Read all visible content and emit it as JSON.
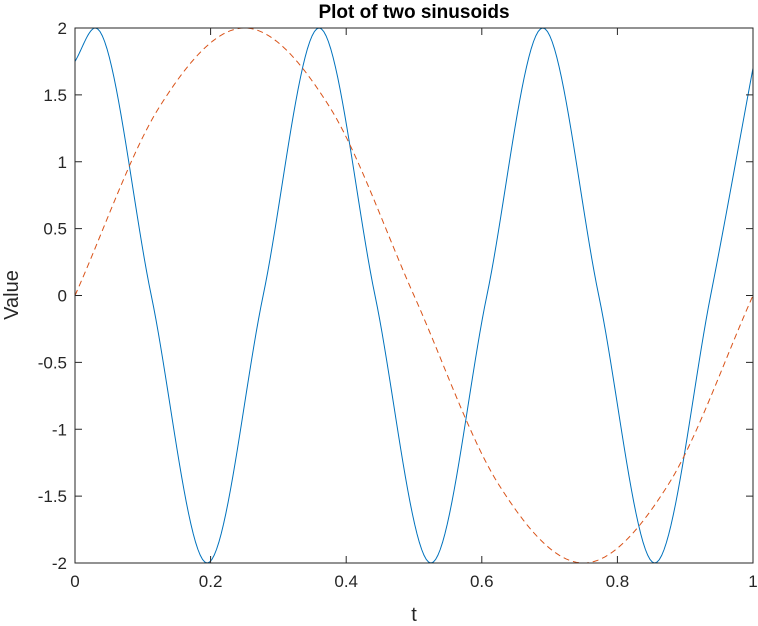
{
  "chart_data": {
    "type": "line",
    "title": "Plot of two sinusoids",
    "xlabel": "t",
    "ylabel": "Value",
    "xlim": [
      0,
      1
    ],
    "ylim": [
      -2,
      2
    ],
    "xticks": [
      0,
      0.2,
      0.4,
      0.6,
      0.8,
      1
    ],
    "xtick_labels": [
      "0",
      "0.2",
      "0.4",
      "0.6",
      "0.8",
      "1"
    ],
    "yticks": [
      -2,
      -1.5,
      -1,
      -0.5,
      0,
      0.5,
      1,
      1.5,
      2
    ],
    "ytick_labels": [
      "-2",
      "-1.5",
      "-1",
      "-0.5",
      "0",
      "0.5",
      "1",
      "1.5",
      "2"
    ],
    "grid": false,
    "legend": "none",
    "series": [
      {
        "color": "#0072BD",
        "line_style": "solid",
        "x": [
          0,
          0.03,
          0.1125,
          0.195,
          0.2775,
          0.36,
          0.4425,
          0.525,
          0.6075,
          0.69,
          0.7725,
          0.855,
          0.9375,
          1
        ],
        "y": [
          1.75,
          2,
          0,
          -2,
          0,
          2,
          0,
          -2,
          0,
          2,
          0,
          -2,
          0,
          1.7
        ]
      },
      {
        "color": "#D95319",
        "line_style": "dashed",
        "x": [
          0,
          0.125,
          0.25,
          0.375,
          0.5,
          0.625,
          0.75,
          0.875,
          1
        ],
        "y": [
          0,
          1.414,
          2,
          1.414,
          0,
          -1.414,
          -2,
          -1.414,
          0
        ]
      }
    ]
  }
}
